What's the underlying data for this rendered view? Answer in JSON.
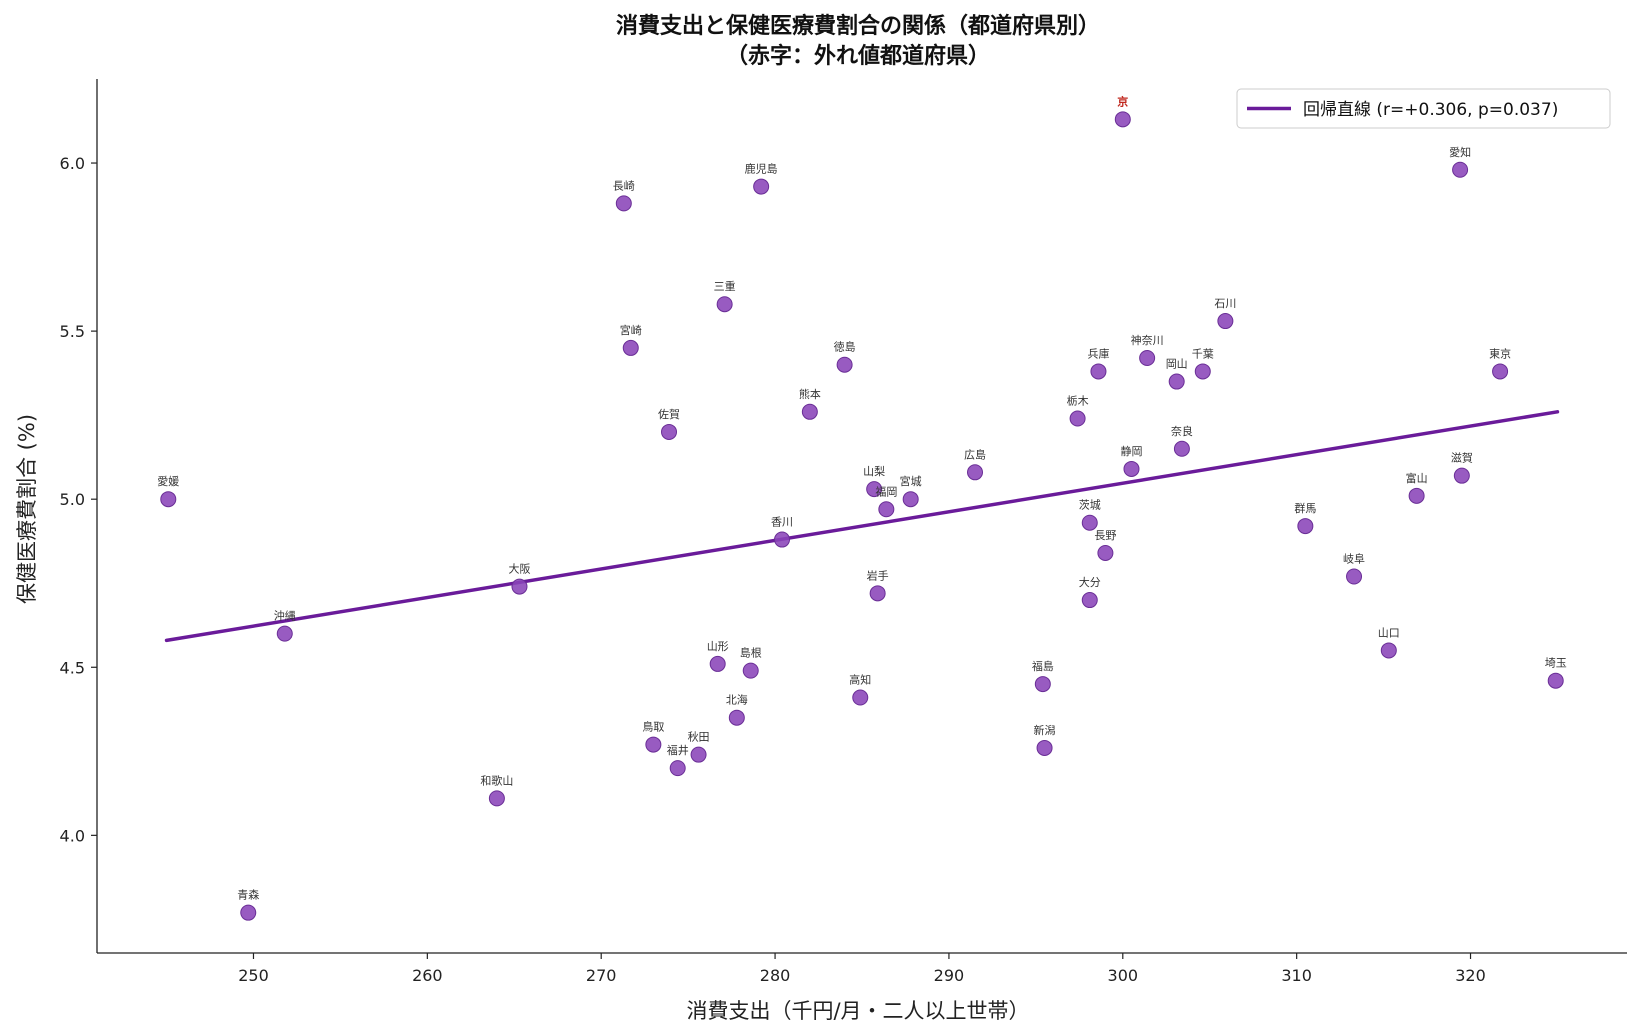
{
  "chart_data": {
    "type": "scatter",
    "title": "消費支出と保健医療費割合の関係（都道府県別）",
    "subtitle": "（赤字：外れ値都道府県）",
    "xlabel": "消費支出（千円/月・二人以上世帯）",
    "ylabel": "保健医療費割合 (%)",
    "xlim": [
      241,
      329
    ],
    "ylim": [
      3.65,
      6.25
    ],
    "xticks": [
      250,
      260,
      270,
      280,
      290,
      300,
      310,
      320
    ],
    "yticks": [
      "4.0",
      "4.5",
      "5.0",
      "5.5",
      "6.0"
    ],
    "grid": false,
    "legend_position": "top-right",
    "point_color": "#8a44b8",
    "line_color": "#6a1b9a",
    "outlier_color": "#c0281f",
    "regression": {
      "label": "回帰直線 (r=+0.306, p=0.037)",
      "x": [
        245,
        325
      ],
      "y": [
        4.58,
        5.26
      ]
    },
    "points": [
      {
        "label": "京",
        "x": 300.0,
        "y": 6.13,
        "outlier": true
      },
      {
        "label": "愛知",
        "x": 319.4,
        "y": 5.98
      },
      {
        "label": "鹿児島",
        "x": 279.2,
        "y": 5.93
      },
      {
        "label": "長崎",
        "x": 271.3,
        "y": 5.88
      },
      {
        "label": "三重",
        "x": 277.1,
        "y": 5.58
      },
      {
        "label": "石川",
        "x": 305.9,
        "y": 5.53
      },
      {
        "label": "宮崎",
        "x": 271.7,
        "y": 5.45
      },
      {
        "label": "神奈川",
        "x": 301.4,
        "y": 5.42
      },
      {
        "label": "徳島",
        "x": 284.0,
        "y": 5.4
      },
      {
        "label": "兵庫",
        "x": 298.6,
        "y": 5.38
      },
      {
        "label": "千葉",
        "x": 304.6,
        "y": 5.38
      },
      {
        "label": "東京",
        "x": 321.7,
        "y": 5.38
      },
      {
        "label": "岡山",
        "x": 303.1,
        "y": 5.35
      },
      {
        "label": "熊本",
        "x": 282.0,
        "y": 5.26
      },
      {
        "label": "栃木",
        "x": 297.4,
        "y": 5.24
      },
      {
        "label": "佐賀",
        "x": 273.9,
        "y": 5.2
      },
      {
        "label": "奈良",
        "x": 303.4,
        "y": 5.15
      },
      {
        "label": "静岡",
        "x": 300.5,
        "y": 5.09
      },
      {
        "label": "広島",
        "x": 291.5,
        "y": 5.08
      },
      {
        "label": "滋賀",
        "x": 319.5,
        "y": 5.07
      },
      {
        "label": "山梨",
        "x": 285.7,
        "y": 5.03
      },
      {
        "label": "富山",
        "x": 316.9,
        "y": 5.01
      },
      {
        "label": "宮城",
        "x": 287.8,
        "y": 5.0
      },
      {
        "label": "愛媛",
        "x": 245.1,
        "y": 5.0
      },
      {
        "label": "福岡",
        "x": 286.4,
        "y": 4.97
      },
      {
        "label": "茨城",
        "x": 298.1,
        "y": 4.93
      },
      {
        "label": "群馬",
        "x": 310.5,
        "y": 4.92
      },
      {
        "label": "香川",
        "x": 280.4,
        "y": 4.88
      },
      {
        "label": "長野",
        "x": 299.0,
        "y": 4.84
      },
      {
        "label": "岐阜",
        "x": 313.3,
        "y": 4.77
      },
      {
        "label": "大阪",
        "x": 265.3,
        "y": 4.74
      },
      {
        "label": "岩手",
        "x": 285.9,
        "y": 4.72
      },
      {
        "label": "大分",
        "x": 298.1,
        "y": 4.7
      },
      {
        "label": "沖縄",
        "x": 251.8,
        "y": 4.6
      },
      {
        "label": "山口",
        "x": 315.3,
        "y": 4.55
      },
      {
        "label": "山形",
        "x": 276.7,
        "y": 4.51
      },
      {
        "label": "島根",
        "x": 278.6,
        "y": 4.49
      },
      {
        "label": "埼玉",
        "x": 324.9,
        "y": 4.46
      },
      {
        "label": "福島",
        "x": 295.4,
        "y": 4.45
      },
      {
        "label": "高知",
        "x": 284.9,
        "y": 4.41
      },
      {
        "label": "北海",
        "x": 277.8,
        "y": 4.35
      },
      {
        "label": "鳥取",
        "x": 273.0,
        "y": 4.27
      },
      {
        "label": "新潟",
        "x": 295.5,
        "y": 4.26
      },
      {
        "label": "秋田",
        "x": 275.6,
        "y": 4.24
      },
      {
        "label": "福井",
        "x": 274.4,
        "y": 4.2
      },
      {
        "label": "和歌山",
        "x": 264.0,
        "y": 4.11
      },
      {
        "label": "青森",
        "x": 249.7,
        "y": 3.77
      }
    ]
  }
}
